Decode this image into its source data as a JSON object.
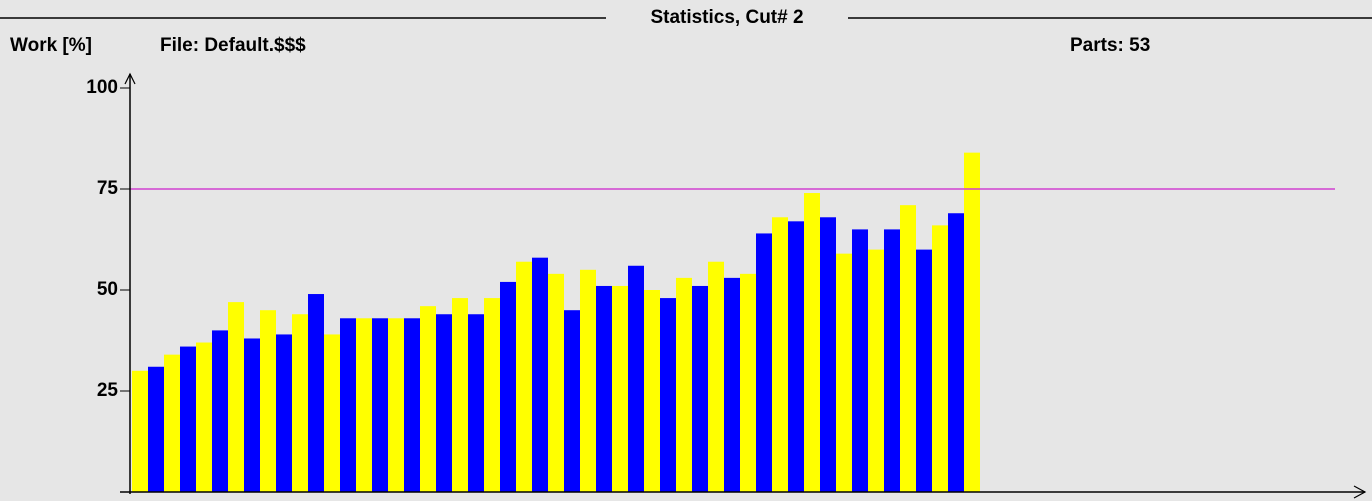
{
  "chart_data": {
    "type": "bar",
    "title": "Statistics, Cut# 2",
    "y_label": "Work [%]",
    "file_label": "File: Default.$$$",
    "parts_label": "Parts: 53",
    "values": [
      30,
      31,
      34,
      36,
      37,
      40,
      47,
      38,
      45,
      39,
      44,
      49,
      39,
      43,
      43,
      43,
      43,
      43,
      46,
      44,
      48,
      44,
      48,
      52,
      57,
      58,
      54,
      45,
      55,
      51,
      51,
      56,
      50,
      48,
      53,
      51,
      57,
      53,
      54,
      64,
      68,
      67,
      74,
      68,
      59,
      65,
      60,
      65,
      71,
      60,
      66,
      69,
      84
    ],
    "colors": [
      "#ffff00",
      "#0000ff"
    ],
    "ylim": [
      0,
      100
    ],
    "yticks": [
      25,
      50,
      75,
      100
    ],
    "threshold": 75,
    "threshold_color": "#d040d0"
  }
}
